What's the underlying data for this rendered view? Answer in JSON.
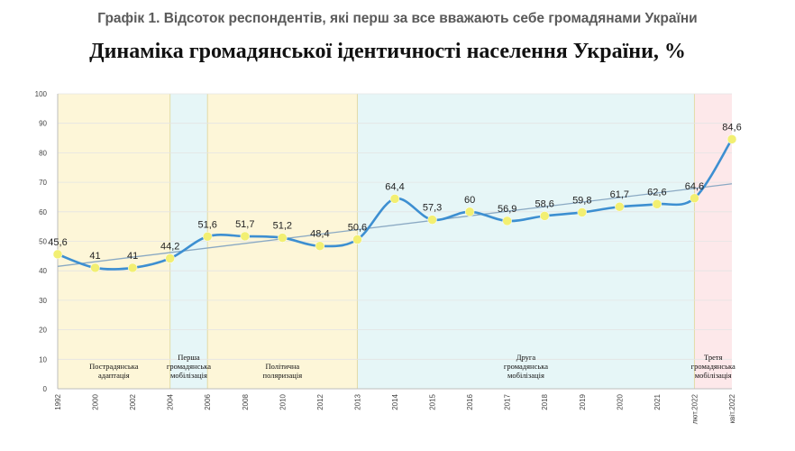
{
  "caption": "Графік 1.  Відсоток респондентів, які перш за все вважають себе громадянами України",
  "chart_data": {
    "type": "line",
    "title": "Динаміка громадянської ідентичності населення України, %",
    "categories": [
      "1992",
      "2000",
      "2002",
      "2004",
      "2006",
      "2008",
      "2010",
      "2012",
      "2013",
      "2014",
      "2015",
      "2016",
      "2017",
      "2018",
      "2019",
      "2020",
      "2021",
      "лют.2022",
      "квіт.2022"
    ],
    "values": [
      45.6,
      41,
      41,
      44.2,
      51.6,
      51.7,
      51.2,
      48.4,
      50.6,
      64.4,
      57.3,
      60,
      56.9,
      58.6,
      59.8,
      61.7,
      62.6,
      64.6,
      84.6
    ],
    "data_labels": [
      "45,6",
      "41",
      "41",
      "44,2",
      "51,6",
      "51,7",
      "51,2",
      "48,4",
      "50,6",
      "64,4",
      "57,3",
      "60",
      "56,9",
      "58,6",
      "59,8",
      "61,7",
      "62,6",
      "64,6",
      "84,6"
    ],
    "ylim": [
      0,
      100
    ],
    "yticks": [
      "0",
      "10",
      "20",
      "30",
      "40",
      "50",
      "60",
      "70",
      "80",
      "90",
      "100"
    ],
    "trendline": {
      "start": 41.5,
      "end": 69.5
    },
    "periods": [
      {
        "lines": [
          "Пострадянська",
          "адаптація"
        ],
        "from": "1992",
        "to": "2004",
        "color": "#fdf6d8"
      },
      {
        "lines": [
          "Перша",
          "громадянська",
          "мобілізація"
        ],
        "from": "2004",
        "to": "2006",
        "color": "#e6f6f7"
      },
      {
        "lines": [
          "Політична",
          "поляризація"
        ],
        "from": "2006",
        "to": "2013",
        "color": "#fdf6d8"
      },
      {
        "lines": [
          "Друга",
          "громадянська",
          "мобілізація"
        ],
        "from": "2013",
        "to": "лют.2022",
        "color": "#e6f6f7"
      },
      {
        "lines": [
          "Третя",
          "громадянська",
          "мобілізація"
        ],
        "from": "лют.2022",
        "to": "квіт.2022",
        "color": "#fde8ea"
      }
    ],
    "colors": {
      "line": "#3d8fd1",
      "marker": "#f2ef72",
      "trend": "#8aa9c3"
    },
    "grid": true
  }
}
